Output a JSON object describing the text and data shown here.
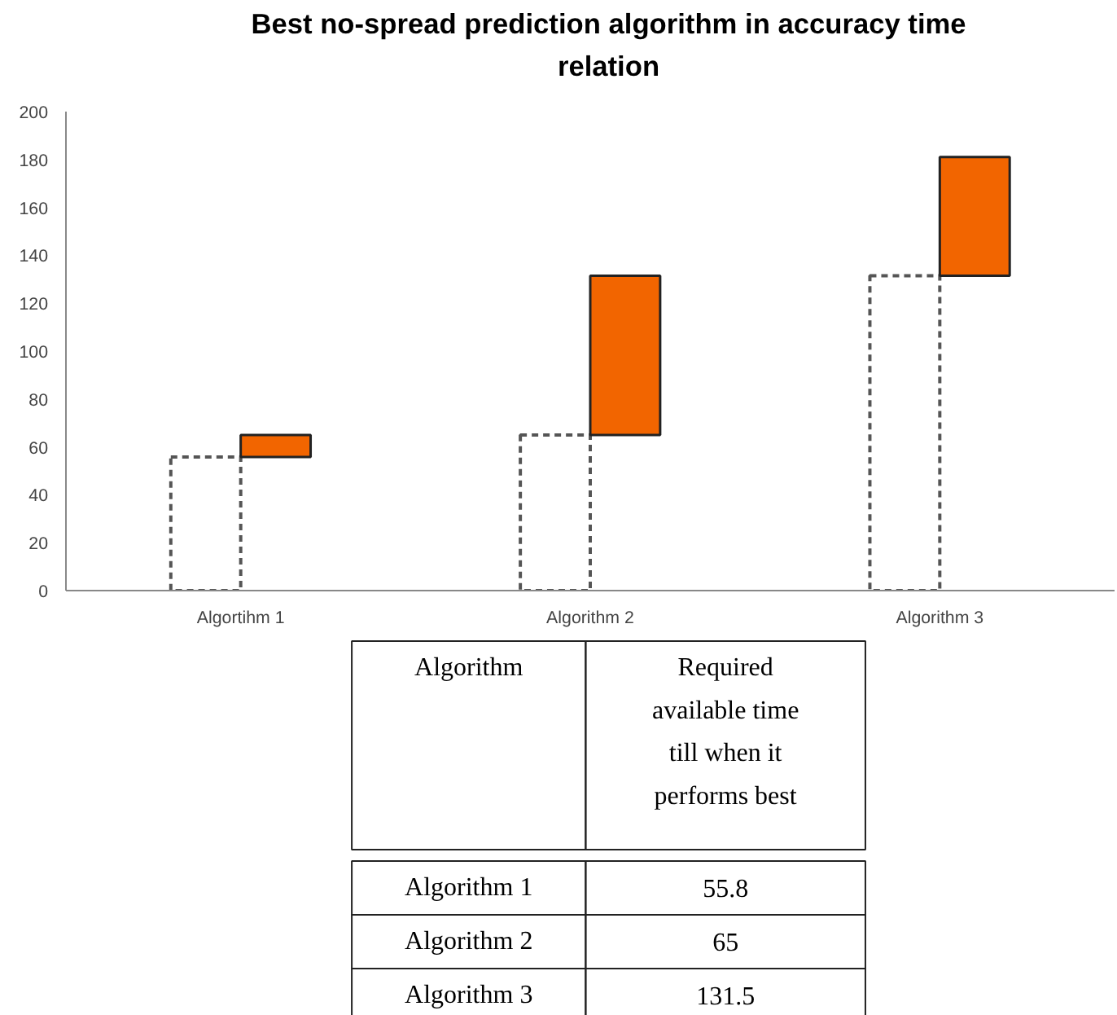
{
  "chart_data": {
    "type": "bar",
    "title": "Best no-spread prediction algorithm in accuracy time relation",
    "categories": [
      "Algortihm 1",
      "Algorithm 2",
      "Algorithm 3"
    ],
    "series": [
      {
        "color": "#555555",
        "line_style": "dashed",
        "values": [
          55.8,
          65,
          131.5
        ]
      },
      {
        "color": "#f26500",
        "values": [
          9.2,
          66.5,
          49.5
        ],
        "base": [
          55.8,
          65,
          131.5
        ]
      }
    ],
    "ylim": [
      0,
      200
    ],
    "yticks": [
      0,
      20,
      40,
      60,
      80,
      100,
      120,
      140,
      160,
      180,
      200
    ],
    "grid": false,
    "annotations": [
      "Algorithm",
      "Required available time till when it performs best",
      "Algorithm 1",
      "55.8",
      "Algorithm 2",
      "65",
      "Algorithm 3",
      "131.5"
    ]
  }
}
